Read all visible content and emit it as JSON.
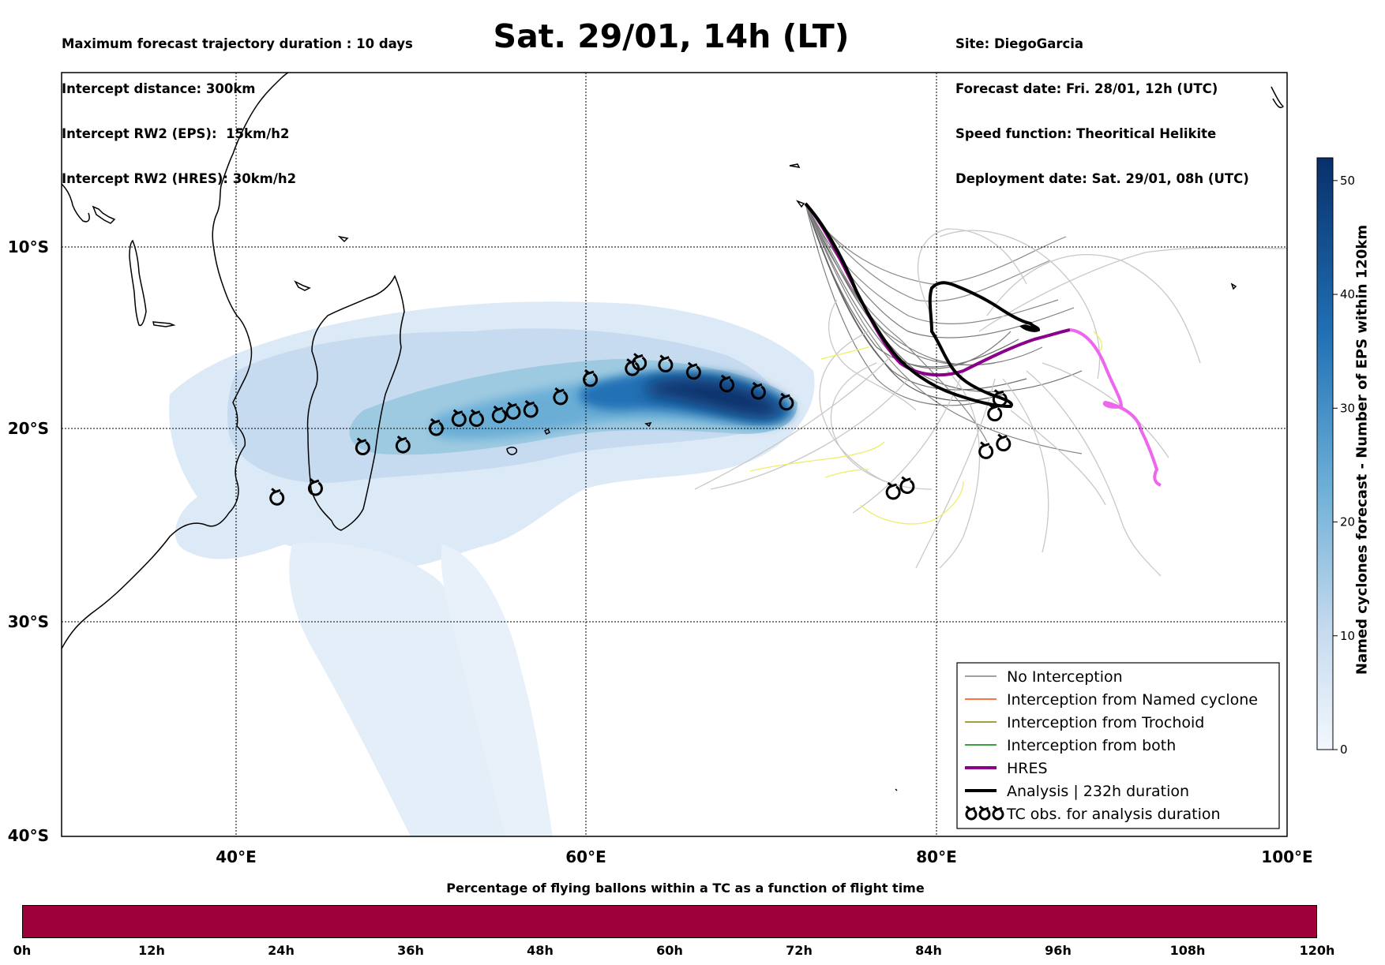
{
  "header_left": [
    "Maximum forecast trajectory duration : 10 days",
    "Intercept distance: 300km",
    "Intercept RW2 (EPS):  15km/h2",
    "Intercept RW2 (HRES): 30km/h2"
  ],
  "title": "Sat. 29/01, 14h (LT)",
  "header_right": [
    "Site: DiegoGarcia",
    "Forecast date: Fri. 28/01, 12h (UTC)",
    "Speed function: Theoritical Helikite",
    "Deployment date: Sat. 29/01, 08h (UTC)"
  ],
  "map": {
    "lon_range": [
      30,
      100
    ],
    "lat_range": [
      0,
      -40
    ],
    "lon_ticks": [
      "40°E",
      "60°E",
      "80°E",
      "100°E"
    ],
    "lat_ticks": [
      "10°S",
      "20°S",
      "30°S",
      "40°S"
    ],
    "colors": {
      "no_interception": "#808080",
      "named_cyclone": "#ff4500",
      "trochoid": "#808000",
      "both": "#008000",
      "hres": "#8b008b",
      "hres_extension": "#ee66ee",
      "analysis": "#000000",
      "eps_light": "#cfe0f1",
      "yellow_tracks": "#eeee66"
    },
    "tc_observations": [
      [
        42.3,
        -23.6
      ],
      [
        44.5,
        -23.1
      ],
      [
        47.2,
        -21.0
      ],
      [
        49.5,
        -20.9
      ],
      [
        51.4,
        -20.0
      ],
      [
        52.7,
        -19.5
      ],
      [
        53.7,
        -19.5
      ],
      [
        55.0,
        -19.3
      ],
      [
        55.8,
        -19.1
      ],
      [
        56.8,
        -19.0
      ],
      [
        58.5,
        -18.3
      ],
      [
        60.2,
        -17.3
      ],
      [
        62.6,
        -16.7
      ],
      [
        63.0,
        -16.4
      ],
      [
        64.5,
        -16.5
      ],
      [
        66.1,
        -16.9
      ],
      [
        68.0,
        -17.6
      ],
      [
        69.8,
        -18.0
      ],
      [
        71.4,
        -18.6
      ],
      [
        77.5,
        -23.3
      ],
      [
        78.3,
        -23.0
      ],
      [
        82.8,
        -21.2
      ],
      [
        83.8,
        -20.8
      ],
      [
        83.3,
        -19.2
      ],
      [
        83.6,
        -18.4
      ]
    ]
  },
  "legend": {
    "items": [
      {
        "label": "No Interception",
        "style": "thin-gray"
      },
      {
        "label": "Interception from Named cyclone",
        "style": "thin-orange"
      },
      {
        "label": "Interception from Trochoid",
        "style": "thin-olive"
      },
      {
        "label": "Interception from both",
        "style": "thin-green"
      },
      {
        "label": "HRES",
        "style": "thick-purple"
      },
      {
        "label": "Analysis | 232h duration",
        "style": "thick-black"
      },
      {
        "label": "TC obs. for analysis duration",
        "style": "tc-symbols"
      }
    ]
  },
  "colorbar_right": {
    "label": "Named cyclones forecast - Number of EPS within 120km",
    "ticks": [
      "0",
      "10",
      "20",
      "30",
      "40",
      "50"
    ],
    "range": [
      0,
      52
    ]
  },
  "bottom_bar": {
    "title": "Percentage of flying ballons within a TC as a function of flight time",
    "ticks": [
      "0h",
      "12h",
      "24h",
      "36h",
      "48h",
      "60h",
      "72h",
      "84h",
      "96h",
      "108h",
      "120h"
    ],
    "color": "#9e003a"
  }
}
